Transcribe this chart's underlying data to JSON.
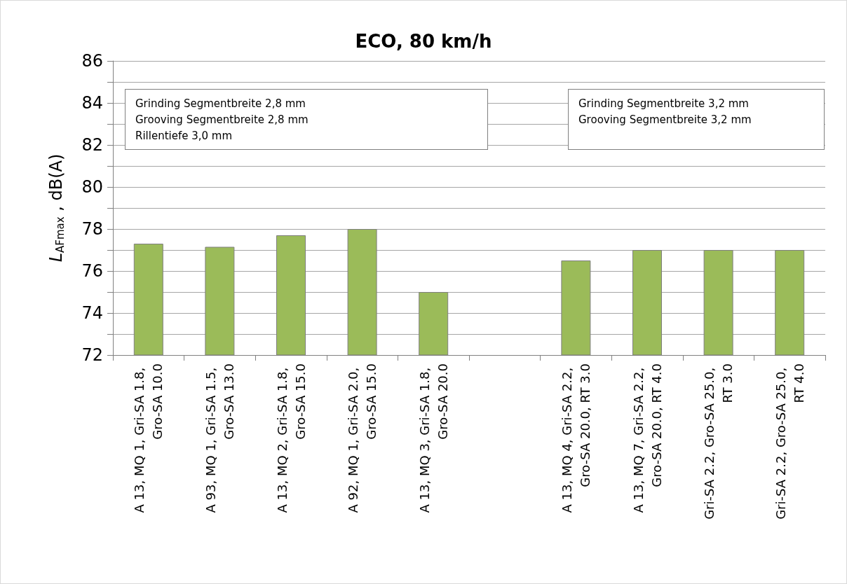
{
  "chart_data": {
    "type": "bar",
    "title": "ECO, 80 km/h",
    "ylabel": "L$_{AFmax}$ , dB(A)",
    "categories": [
      "A 13, MQ 1, Gri-SA 1.8, Gro-SA 10.0",
      "A 93, MQ 1, Gri-SA 1.5, Gro-SA 13.0",
      "A 13, MQ 2, Gri-SA 1.8, Gro-SA 15.0",
      "A 92, MQ 1, Gri-SA 2.0, Gro-SA 15.0",
      "A 13, MQ 3, Gri-SA 1.8, Gro-SA 20.0",
      null,
      "A 13, MQ 4, Gri-SA 2.2, Gro-SA 20.0, RT 3.0",
      "A 13, MQ 7, Gri-SA 2.2, Gro-SA 20.0, RT 4.0",
      "Gri-SA 2.2, Gro-SA 25.0, RT 3.0",
      "Gri-SA 2.2, Gro-SA 25.0, RT 4.0"
    ],
    "values": [
      77.3,
      77.15,
      77.7,
      78.0,
      75.0,
      null,
      76.5,
      77.0,
      77.0,
      77.0
    ],
    "color": "#9bbb59",
    "ylim": [
      72,
      86
    ],
    "yticks": [
      72,
      {
        "value": 73,
        "label": null
      },
      74,
      {
        "value": 75,
        "label": null
      },
      76,
      {
        "value": 77,
        "label": null
      },
      78,
      {
        "value": 79,
        "label": null
      },
      80,
      {
        "value": 81,
        "label": null
      },
      82,
      {
        "value": 83,
        "label": null
      },
      84,
      {
        "value": 85,
        "label": null
      },
      86
    ],
    "grid": "y",
    "annotations": [
      "Grinding Segmentbreite 2,8 mm\nGrooving Segmentbreite 2,8 mm\nRillentiefe 3,0 mm",
      "Grinding Segmentbreite 3,2 mm\nGrooving Segmentbreite 3,2 mm"
    ]
  }
}
